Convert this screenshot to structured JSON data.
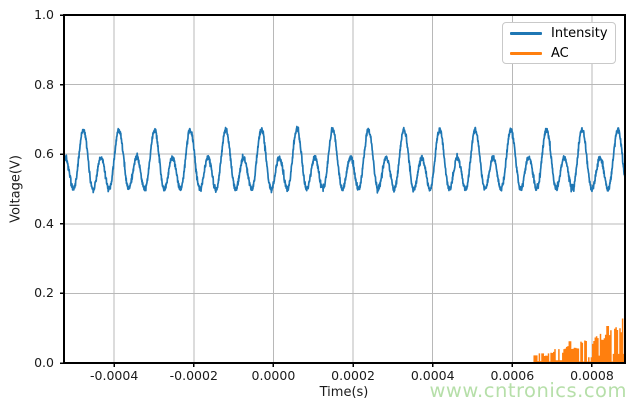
{
  "watermark": {
    "text": "www.cntronics.com",
    "color": "#b6dfa9"
  },
  "chart_data": {
    "type": "line",
    "title": "",
    "xlabel": "Time(s)",
    "ylabel": "Voltage(V)",
    "xlim": [
      -0.000526,
      0.000883
    ],
    "ylim": [
      0.0,
      1.0
    ],
    "xticks": [
      -0.0004,
      -0.0002,
      0.0,
      0.0002,
      0.0004,
      0.0006,
      0.0008
    ],
    "xtick_labels": [
      "-0.0004",
      "-0.0002",
      "0.0000",
      "0.0002",
      "0.0004",
      "0.0006",
      "0.0008"
    ],
    "yticks": [
      0.0,
      0.2,
      0.4,
      0.6,
      0.8,
      1.0
    ],
    "ytick_labels": [
      "0.0",
      "0.2",
      "0.4",
      "0.6",
      "0.8",
      "1.0"
    ],
    "grid": true,
    "grid_color": "#b8b8b8",
    "legend_position": "upper right",
    "series": [
      {
        "name": "Intensity",
        "color": "#1f77b4",
        "description": "Noisy periodic waveform spanning the full time axis, ~15.7 cycles visible",
        "model": {
          "kind": "harmonic_noise",
          "mean_v": 0.5666,
          "fundamental_amplitude_v": 0.04,
          "second_harmonic_amplitude_v": 0.0634,
          "period_s": 8.95e-05,
          "peak_time_s": -3e-05,
          "noise_amplitude_v": 0.007,
          "approx_peak_v": 0.67,
          "approx_shoulder_v": 0.59,
          "approx_trough_v": 0.5
        }
      },
      {
        "name": "AC",
        "color": "#ff7f0e",
        "description": "Burst of dense vertical spikes near right edge, envelope rising in steps from 0 to ~0.12 V",
        "model": {
          "kind": "spike_burst",
          "start_time_s": 0.000655,
          "end_time_s": 0.000883,
          "envelope_steps_v": [
            0.022,
            0.032,
            0.05,
            0.065,
            0.085,
            0.105
          ],
          "max_spike_v": 0.128
        }
      }
    ]
  }
}
